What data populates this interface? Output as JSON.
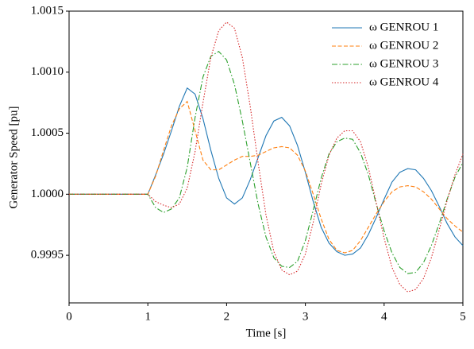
{
  "chart_data": {
    "type": "line",
    "xlabel": "Time [s]",
    "ylabel": "Generator Speed [pu]",
    "x": [
      0,
      0.1,
      0.2,
      0.3,
      0.4,
      0.5,
      0.6,
      0.7,
      0.8,
      0.9,
      1.0,
      1.1,
      1.2,
      1.3,
      1.4,
      1.5,
      1.6,
      1.7,
      1.8,
      1.9,
      2.0,
      2.1,
      2.2,
      2.3,
      2.4,
      2.5,
      2.6,
      2.7,
      2.8,
      2.9,
      3.0,
      3.1,
      3.2,
      3.3,
      3.4,
      3.5,
      3.6,
      3.7,
      3.8,
      3.9,
      4.0,
      4.1,
      4.2,
      4.3,
      4.4,
      4.5,
      4.6,
      4.7,
      4.8,
      4.9,
      5.0
    ],
    "series": [
      {
        "name": "ω GENROU 1",
        "color": "#1f77b4",
        "linestyle": "solid",
        "values": [
          1,
          1,
          1,
          1,
          1,
          1,
          1,
          1,
          1,
          1,
          1,
          1.00016,
          1.00033,
          1.00052,
          1.00072,
          1.00087,
          1.00082,
          1.00062,
          1.00036,
          1.00013,
          0.99997,
          0.99992,
          0.99997,
          1.00012,
          1.0003,
          1.00048,
          1.0006,
          1.00063,
          1.00056,
          1.0004,
          1.00018,
          0.99994,
          0.99973,
          0.9996,
          0.99953,
          0.9995,
          0.99951,
          0.99956,
          0.99967,
          0.99981,
          0.99996,
          1.0001,
          1.00018,
          1.00021,
          1.0002,
          1.00013,
          1.00003,
          0.9999,
          0.99976,
          0.99965,
          0.99958
        ]
      },
      {
        "name": "ω GENROU 2",
        "color": "#ff7f0e",
        "linestyle": "dashed",
        "values": [
          1,
          1,
          1,
          1,
          1,
          1,
          1,
          1,
          1,
          1,
          1,
          1.00015,
          1.00036,
          1.00056,
          1.0007,
          1.00076,
          1.00052,
          1.00028,
          1.0002,
          1.0002,
          1.00024,
          1.00028,
          1.00031,
          1.00031,
          1.00032,
          1.00035,
          1.00038,
          1.00039,
          1.00038,
          1.00032,
          1.00019,
          1.0,
          0.9998,
          0.99963,
          0.99954,
          0.99952,
          0.99954,
          0.99962,
          0.99973,
          0.99984,
          0.99994,
          1.00002,
          1.00006,
          1.00007,
          1.00006,
          1.00002,
          0.99996,
          0.99988,
          0.9998,
          0.99974,
          0.99969
        ]
      },
      {
        "name": "ω GENROU 3",
        "color": "#2ca02c",
        "linestyle": "dashdot",
        "values": [
          1,
          1,
          1,
          1,
          1,
          1,
          1,
          1,
          1,
          1,
          1,
          0.99989,
          0.99985,
          0.99988,
          0.99997,
          1.00022,
          1.00063,
          1.00096,
          1.00113,
          1.00117,
          1.0011,
          1.0009,
          1.0006,
          1.00026,
          0.99992,
          0.99965,
          0.99948,
          0.99941,
          0.9994,
          0.99945,
          0.99962,
          0.99987,
          1.00013,
          1.00033,
          1.00043,
          1.00046,
          1.00045,
          1.00034,
          1.00016,
          0.99992,
          0.9997,
          0.99952,
          0.9994,
          0.99935,
          0.99936,
          0.99944,
          0.99958,
          0.99976,
          0.99996,
          1.00014,
          1.00026
        ]
      },
      {
        "name": "ω GENROU 4",
        "color": "#d62728",
        "linestyle": "dotted",
        "values": [
          1,
          1,
          1,
          1,
          1,
          1,
          1,
          1,
          1,
          1,
          1,
          0.99994,
          0.99991,
          0.99989,
          0.99992,
          1.00005,
          1.00035,
          1.00075,
          1.00112,
          1.00134,
          1.00141,
          1.00136,
          1.00112,
          1.00072,
          1.00026,
          0.99983,
          0.99953,
          0.99938,
          0.99934,
          0.99937,
          0.99951,
          0.99977,
          1.00008,
          1.00032,
          1.00046,
          1.00052,
          1.00052,
          1.00043,
          1.00022,
          0.99993,
          0.99964,
          0.9994,
          0.99926,
          0.9992,
          0.99922,
          0.99931,
          0.99948,
          0.99971,
          0.99995,
          1.00016,
          1.00033
        ]
      }
    ],
    "xlim": [
      0,
      5
    ],
    "ylim": [
      0.99911,
      1.0015
    ],
    "xticks": [
      0,
      1,
      2,
      3,
      4,
      5
    ],
    "yticks": [
      0.9995,
      {
        "value": 1,
        "label": "1.0000"
      },
      1.0005,
      {
        "value": 1.001,
        "label": "1.0010"
      },
      1.0015
    ],
    "grid": false,
    "legend": "upper right"
  }
}
